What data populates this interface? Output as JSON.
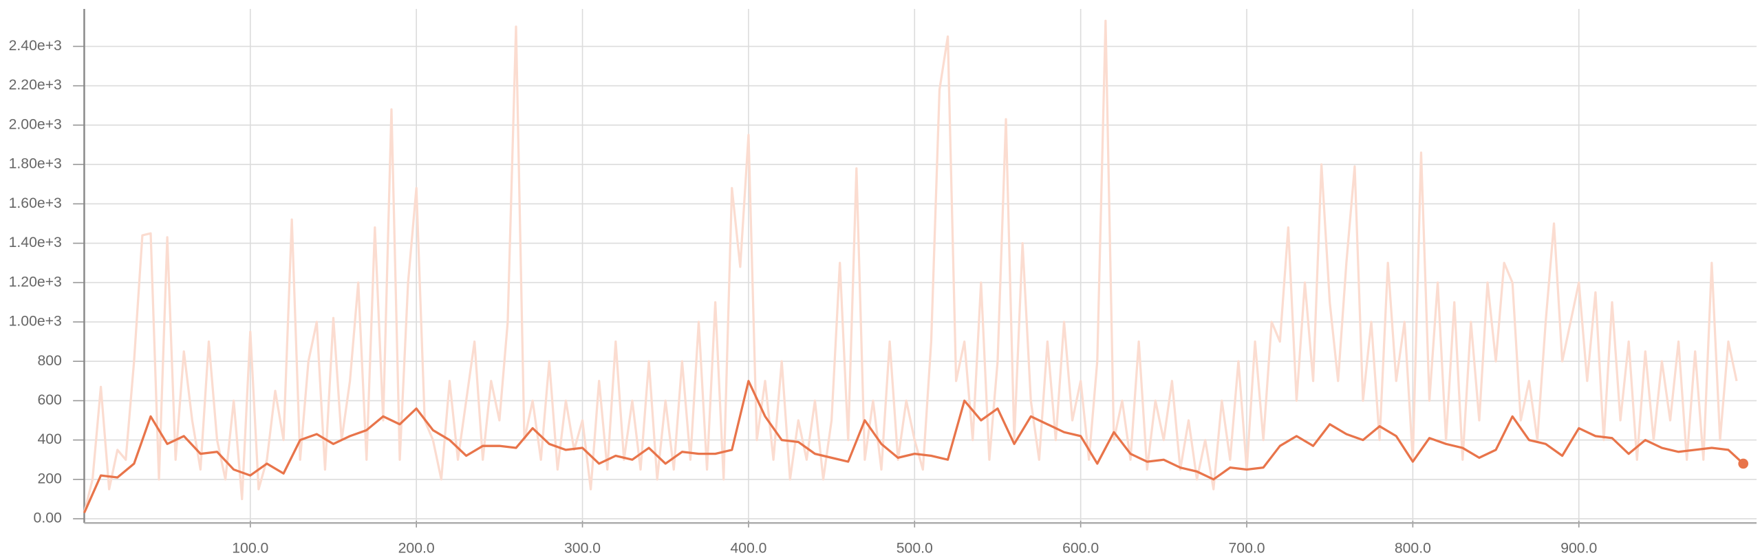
{
  "chart_data": {
    "type": "line",
    "xlim": [
      0,
      1007
    ],
    "ylim": [
      -10,
      2590
    ],
    "xticks": [
      {
        "value": 100,
        "label": "100.0"
      },
      {
        "value": 200,
        "label": "200.0"
      },
      {
        "value": 300,
        "label": "300.0"
      },
      {
        "value": 400,
        "label": "400.0"
      },
      {
        "value": 500,
        "label": "500.0"
      },
      {
        "value": 600,
        "label": "600.0"
      },
      {
        "value": 700,
        "label": "700.0"
      },
      {
        "value": 800,
        "label": "800.0"
      },
      {
        "value": 900,
        "label": "900.0"
      }
    ],
    "yticks": [
      {
        "value": 0,
        "label": "0.00"
      },
      200,
      400,
      600,
      800,
      {
        "value": 1000,
        "label": "1.00e+3"
      },
      {
        "value": 1200,
        "label": "1.20e+3"
      },
      {
        "value": 1400,
        "label": "1.40e+3"
      },
      {
        "value": 1600,
        "label": "1.60e+3"
      },
      {
        "value": 1800,
        "label": "1.80e+3"
      },
      {
        "value": 2000,
        "label": "2.00e+3"
      },
      {
        "value": 2200,
        "label": "2.20e+3"
      },
      {
        "value": 2400,
        "label": "2.40e+3"
      }
    ],
    "grid": true,
    "series": [
      {
        "color": "#fbdcd0",
        "x": [
          0,
          5,
          10,
          15,
          20,
          25,
          30,
          35,
          40,
          45,
          50,
          55,
          60,
          65,
          70,
          75,
          80,
          85,
          90,
          95,
          100,
          105,
          110,
          115,
          120,
          125,
          130,
          135,
          140,
          145,
          150,
          155,
          160,
          165,
          170,
          175,
          180,
          185,
          190,
          195,
          200,
          205,
          210,
          215,
          220,
          225,
          230,
          235,
          240,
          245,
          250,
          255,
          260,
          265,
          270,
          275,
          280,
          285,
          290,
          295,
          300,
          305,
          310,
          315,
          320,
          325,
          330,
          335,
          340,
          345,
          350,
          355,
          360,
          365,
          370,
          375,
          380,
          385,
          390,
          395,
          400,
          405,
          410,
          415,
          420,
          425,
          430,
          435,
          440,
          445,
          450,
          455,
          460,
          465,
          470,
          475,
          480,
          485,
          490,
          495,
          500,
          505,
          510,
          515,
          520,
          525,
          530,
          535,
          540,
          545,
          550,
          555,
          560,
          565,
          570,
          575,
          580,
          585,
          590,
          595,
          600,
          605,
          610,
          615,
          620,
          625,
          630,
          635,
          640,
          645,
          650,
          655,
          660,
          665,
          670,
          675,
          680,
          685,
          690,
          695,
          700,
          705,
          710,
          715,
          720,
          725,
          730,
          735,
          740,
          745,
          750,
          755,
          760,
          765,
          770,
          775,
          780,
          785,
          790,
          795,
          800,
          805,
          810,
          815,
          820,
          825,
          830,
          835,
          840,
          845,
          850,
          855,
          860,
          865,
          870,
          875,
          880,
          885,
          890,
          895,
          900,
          905,
          910,
          915,
          920,
          925,
          930,
          935,
          940,
          945,
          950,
          955,
          960,
          965,
          970,
          975,
          980,
          985,
          990,
          995
        ],
        "values": [
          30,
          200,
          670,
          150,
          350,
          300,
          800,
          1440,
          1450,
          200,
          1430,
          300,
          850,
          500,
          250,
          900,
          400,
          200,
          600,
          100,
          950,
          150,
          300,
          650,
          400,
          1520,
          300,
          800,
          1000,
          250,
          1020,
          400,
          700,
          1200,
          300,
          1480,
          500,
          2080,
          300,
          1200,
          1680,
          500,
          400,
          200,
          700,
          300,
          600,
          900,
          300,
          700,
          500,
          1000,
          2500,
          400,
          600,
          300,
          800,
          250,
          600,
          350,
          500,
          150,
          700,
          250,
          900,
          300,
          600,
          250,
          800,
          200,
          600,
          250,
          800,
          300,
          1000,
          250,
          1100,
          200,
          1680,
          1280,
          1950,
          400,
          700,
          300,
          800,
          200,
          500,
          300,
          600,
          200,
          500,
          1300,
          400,
          1780,
          300,
          600,
          250,
          900,
          300,
          600,
          400,
          250,
          900,
          2180,
          2450,
          700,
          900,
          400,
          1200,
          300,
          800,
          2030,
          400,
          1400,
          600,
          300,
          900,
          400,
          1000,
          500,
          700,
          300,
          800,
          2530,
          400,
          600,
          300,
          900,
          250,
          600,
          400,
          700,
          250,
          500,
          200,
          400,
          150,
          600,
          300,
          800,
          250,
          900,
          400,
          1000,
          900,
          1480,
          600,
          1200,
          700,
          1800,
          1100,
          700,
          1300,
          1790,
          600,
          1000,
          400,
          1300,
          700,
          1000,
          300,
          1860,
          600,
          1200,
          400,
          1100,
          300,
          1000,
          500,
          1200,
          800,
          1300,
          1200,
          500,
          700,
          400,
          1000,
          1500,
          800,
          1000,
          1200,
          700,
          1150,
          400,
          1100,
          500,
          900,
          300,
          850,
          400,
          800,
          500,
          900,
          300,
          850,
          300,
          1300,
          400,
          900,
          700
        ]
      },
      {
        "color": "#e8744a",
        "x": [
          0,
          10,
          20,
          30,
          40,
          50,
          60,
          70,
          80,
          90,
          100,
          110,
          120,
          130,
          140,
          150,
          160,
          170,
          180,
          190,
          200,
          210,
          220,
          230,
          240,
          250,
          260,
          270,
          280,
          290,
          300,
          310,
          320,
          330,
          340,
          350,
          360,
          370,
          380,
          390,
          400,
          410,
          420,
          430,
          440,
          450,
          460,
          470,
          480,
          490,
          500,
          510,
          520,
          530,
          540,
          550,
          560,
          570,
          580,
          590,
          600,
          610,
          620,
          630,
          640,
          650,
          660,
          670,
          680,
          690,
          700,
          710,
          720,
          730,
          740,
          750,
          760,
          770,
          780,
          790,
          800,
          810,
          820,
          830,
          840,
          850,
          860,
          870,
          880,
          890,
          900,
          910,
          920,
          930,
          940,
          950,
          960,
          970,
          980,
          990,
          999
        ],
        "values": [
          30,
          220,
          210,
          280,
          520,
          380,
          420,
          330,
          340,
          250,
          220,
          280,
          230,
          400,
          430,
          380,
          420,
          450,
          520,
          480,
          560,
          450,
          400,
          320,
          370,
          370,
          360,
          460,
          380,
          350,
          360,
          280,
          320,
          300,
          360,
          280,
          340,
          330,
          330,
          350,
          700,
          520,
          400,
          390,
          330,
          310,
          290,
          500,
          380,
          310,
          330,
          320,
          300,
          600,
          500,
          560,
          380,
          520,
          480,
          440,
          420,
          280,
          440,
          330,
          290,
          300,
          260,
          240,
          200,
          260,
          250,
          260,
          370,
          420,
          370,
          480,
          430,
          400,
          470,
          420,
          290,
          410,
          380,
          360,
          310,
          350,
          520,
          400,
          380,
          320,
          460,
          420,
          410,
          330,
          400,
          360,
          340,
          350,
          360,
          350,
          280
        ]
      }
    ]
  }
}
